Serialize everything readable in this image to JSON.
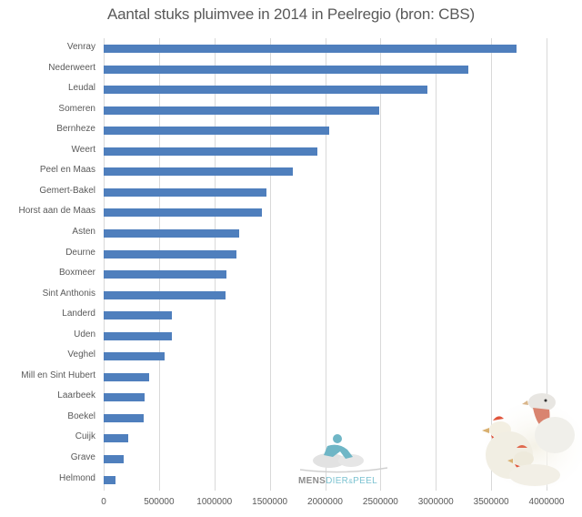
{
  "chart_data": {
    "type": "bar",
    "orientation": "horizontal",
    "title": "Aantal stuks pluimvee in 2014 in Peelregio (bron: CBS)",
    "xlabel": "",
    "ylabel": "",
    "xlim": [
      0,
      4000000
    ],
    "grid": true,
    "legend": null,
    "x_ticks": [
      "0",
      "500000",
      "1000000",
      "1500000",
      "2000000",
      "2500000",
      "3000000",
      "3500000",
      "4000000"
    ],
    "categories": [
      "Venray",
      "Nederweert",
      "Leudal",
      "Someren",
      "Bernheze",
      "Weert",
      "Peel en Maas",
      "Gemert-Bakel",
      "Horst aan de Maas",
      "Asten",
      "Deurne",
      "Boxmeer",
      "Sint Anthonis",
      "Landerd",
      "Uden",
      "Veghel",
      "Mill en Sint Hubert",
      "Laarbeek",
      "Boekel",
      "Cuijk",
      "Grave",
      "Helmond"
    ],
    "values": [
      3730000,
      3290000,
      2920000,
      2490000,
      2040000,
      1930000,
      1710000,
      1470000,
      1430000,
      1220000,
      1200000,
      1110000,
      1100000,
      620000,
      620000,
      550000,
      410000,
      370000,
      360000,
      220000,
      180000,
      110000
    ],
    "bar_color": "#4f7fbd"
  },
  "logo": {
    "part1": "MENS",
    "part2": "DIER",
    "part3": "&",
    "part4": "PEEL"
  }
}
